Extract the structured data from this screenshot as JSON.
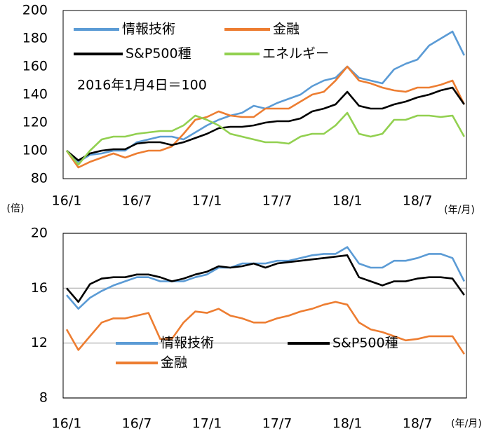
{
  "chart_data": [
    {
      "type": "line",
      "annotation": "2016年1月4日＝100",
      "xlabel": "(年/月)",
      "categories": [
        "16/1",
        null,
        null,
        null,
        null,
        null,
        "16/7",
        null,
        null,
        null,
        null,
        null,
        "17/1",
        null,
        null,
        null,
        null,
        null,
        "17/7",
        null,
        null,
        null,
        null,
        null,
        "18/1",
        null,
        null,
        null,
        null,
        null,
        "18/7",
        null,
        null,
        null,
        null
      ],
      "ylim": [
        80,
        200
      ],
      "yticks": [
        80,
        100,
        120,
        140,
        160,
        180,
        200
      ],
      "grid": false,
      "series": [
        {
          "name": "情報技術",
          "color": "#5b9bd5",
          "values": [
            100,
            92,
            97,
            98,
            100,
            100,
            106,
            108,
            110,
            110,
            108,
            113,
            118,
            122,
            125,
            127,
            132,
            130,
            134,
            137,
            140,
            146,
            150,
            152,
            160,
            152,
            150,
            148,
            158,
            162,
            165,
            175,
            180,
            185,
            168
          ]
        },
        {
          "name": "金融",
          "color": "#ed7d31",
          "values": [
            100,
            88,
            92,
            95,
            98,
            95,
            98,
            100,
            100,
            103,
            112,
            122,
            124,
            128,
            125,
            124,
            124,
            130,
            130,
            130,
            135,
            140,
            142,
            150,
            160,
            150,
            148,
            145,
            143,
            142,
            145,
            145,
            147,
            150,
            133
          ]
        },
        {
          "name": "S&P500種",
          "color": "#000000",
          "values": [
            100,
            93,
            98,
            100,
            101,
            101,
            105,
            106,
            106,
            104,
            106,
            109,
            112,
            116,
            117,
            117,
            118,
            120,
            121,
            121,
            123,
            128,
            130,
            133,
            142,
            132,
            130,
            130,
            133,
            135,
            138,
            140,
            143,
            145,
            133
          ]
        },
        {
          "name": "エネルギー",
          "color": "#92d050",
          "values": [
            100,
            90,
            100,
            108,
            110,
            110,
            112,
            113,
            114,
            114,
            118,
            125,
            122,
            118,
            112,
            110,
            108,
            106,
            106,
            105,
            110,
            112,
            112,
            118,
            127,
            112,
            110,
            112,
            122,
            122,
            125,
            125,
            124,
            125,
            110
          ]
        }
      ]
    },
    {
      "type": "line",
      "ylabel": "(倍)",
      "xlabel": "(年/月)",
      "categories": [
        "16/1",
        null,
        null,
        null,
        null,
        null,
        "16/7",
        null,
        null,
        null,
        null,
        null,
        "17/1",
        null,
        null,
        null,
        null,
        null,
        "17/7",
        null,
        null,
        null,
        null,
        null,
        "18/1",
        null,
        null,
        null,
        null,
        null,
        "18/7",
        null,
        null,
        null,
        null
      ],
      "ylim": [
        8,
        20
      ],
      "yticks": [
        8,
        12,
        16,
        20
      ],
      "grid": true,
      "series": [
        {
          "name": "情報技術",
          "color": "#5b9bd5",
          "values": [
            15.5,
            14.5,
            15.3,
            15.8,
            16.2,
            16.5,
            16.8,
            16.8,
            16.5,
            16.5,
            16.5,
            16.8,
            17.0,
            17.5,
            17.5,
            17.8,
            17.8,
            17.8,
            18.0,
            18.0,
            18.2,
            18.4,
            18.5,
            18.5,
            19.0,
            17.8,
            17.5,
            17.5,
            18.0,
            18.0,
            18.2,
            18.5,
            18.5,
            18.2,
            16.5
          ]
        },
        {
          "name": "S&P500種",
          "color": "#000000",
          "values": [
            16.0,
            15.0,
            16.3,
            16.7,
            16.8,
            16.8,
            17.0,
            17.0,
            16.8,
            16.5,
            16.7,
            17.0,
            17.2,
            17.6,
            17.5,
            17.6,
            17.8,
            17.5,
            17.8,
            17.9,
            18.0,
            18.1,
            18.2,
            18.3,
            18.4,
            16.8,
            16.5,
            16.2,
            16.5,
            16.5,
            16.7,
            16.8,
            16.8,
            16.7,
            15.5
          ]
        },
        {
          "name": "金融",
          "color": "#ed7d31",
          "values": [
            13.0,
            11.5,
            12.5,
            13.5,
            13.8,
            13.8,
            14.0,
            14.2,
            12.3,
            12.3,
            13.5,
            14.3,
            14.2,
            14.5,
            14.0,
            13.8,
            13.5,
            13.5,
            13.8,
            14.0,
            14.3,
            14.5,
            14.8,
            15.0,
            14.8,
            13.5,
            13.0,
            12.8,
            12.5,
            12.2,
            12.3,
            12.5,
            12.5,
            12.5,
            11.2
          ]
        }
      ]
    }
  ]
}
